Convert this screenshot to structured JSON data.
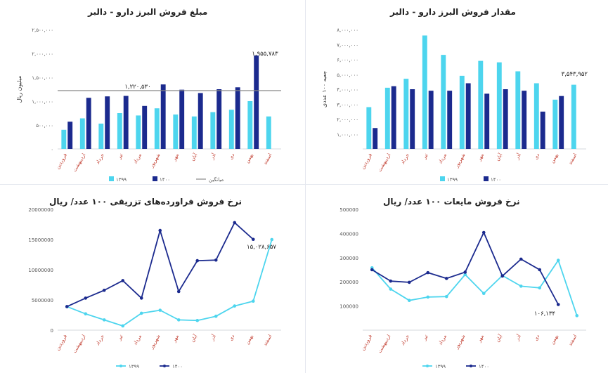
{
  "colors": {
    "light": "#4dd5ee",
    "dark": "#1b2a8e",
    "avg": "#888888"
  },
  "charts": [
    {
      "id": "tl",
      "title": "مبلغ فروش البرز دارو - دالبر",
      "ylabel": "میلیون ریال",
      "categories": [
        "فروردین",
        "اردیبهشت",
        "خرداد",
        "تیر",
        "مرداد",
        "شهریور",
        "مهر",
        "آبان",
        "آذر",
        "دی",
        "بهمن",
        "اسفند"
      ],
      "yticks": [
        "۰",
        "۵۰۰,۰۰۰",
        "۱,۰۰۰,۰۰۰",
        "۱,۵۰۰,۰۰۰",
        "۲,۰۰۰,۰۰۰",
        "۲,۵۰۰,۰۰۰"
      ],
      "legend": [
        "۱۳۹۹",
        "۱۴۰۰",
        "میانگین"
      ],
      "annotations": [
        "۱,۹۵۵,۷۸۳",
        "۱,۲۲۰,۵۳۰"
      ]
    },
    {
      "id": "tr",
      "title": "مقدار فروش البرز دارو - دالبر",
      "ylabel": "جعبه ۱۰۰ عددی",
      "categories": [
        "فروردین",
        "اردیبهشت",
        "خرداد",
        "تیر",
        "مرداد",
        "شهریور",
        "مهر",
        "آبان",
        "آذر",
        "دی",
        "بهمن",
        "اسفند"
      ],
      "yticks": [
        "۱,۰۰۰,۰۰۰",
        "۲,۰۰۰,۰۰۰",
        "۳,۰۰۰,۰۰۰",
        "۴,۰۰۰,۰۰۰",
        "۵,۰۰۰,۰۰۰",
        "۶,۰۰۰,۰۰۰",
        "۷,۰۰۰,۰۰۰",
        "۸,۰۰۰,۰۰۰"
      ],
      "legend": [
        "۱۳۹۹",
        "۱۴۰۰"
      ],
      "annotations": [
        "۳,۵۴۳,۹۵۲"
      ]
    },
    {
      "id": "bl",
      "title": "نرخ فروش فراورده‌های تزریقی ۱۰۰ عدد/ ریال",
      "categories": [
        "فروردین",
        "اردیبهشت",
        "خرداد",
        "تیر",
        "مرداد",
        "شهریور",
        "مهر",
        "آبان",
        "آذر",
        "دی",
        "بهمن",
        "اسفند"
      ],
      "yticks": [
        "0",
        "5000000",
        "10000000",
        "15000000",
        "20000000"
      ],
      "legend": [
        "۱۳۹۹",
        "۱۴۰۰"
      ],
      "annotations": [
        "۱۵,۰۲۸,۶۵۷"
      ]
    },
    {
      "id": "br",
      "title": "نرخ فروش مایعات ۱۰۰ عدد/ ریال",
      "categories": [
        "فروردین",
        "اردیبهشت",
        "خرداد",
        "تیر",
        "مرداد",
        "شهریور",
        "مهر",
        "آبان",
        "آذر",
        "دی",
        "بهمن",
        "اسفند"
      ],
      "yticks": [
        "100000",
        "200000",
        "300000",
        "400000",
        "500000"
      ],
      "legend": [
        "۱۳۹۹",
        "۱۴۰۰"
      ],
      "annotations": [
        "۱۰۶,۱۳۴"
      ]
    }
  ],
  "chart_data": [
    {
      "type": "bar",
      "title": "مبلغ فروش البرز دارو - دالبر",
      "ylabel": "میلیون ریال",
      "ylim": [
        0,
        2500000
      ],
      "categories": [
        "فروردین",
        "اردیبهشت",
        "خرداد",
        "تیر",
        "مرداد",
        "شهریور",
        "مهر",
        "آبان",
        "آذر",
        "دی",
        "بهمن",
        "اسفند"
      ],
      "series": [
        {
          "name": "۱۳۹۹",
          "values": [
            400000,
            640000,
            530000,
            750000,
            700000,
            850000,
            720000,
            680000,
            770000,
            820000,
            1000000,
            680000
          ]
        },
        {
          "name": "۱۴۰۰",
          "values": [
            570000,
            1070000,
            1100000,
            1110000,
            900000,
            1350000,
            1240000,
            1170000,
            1250000,
            1290000,
            1955783,
            null
          ]
        }
      ],
      "reference_line": {
        "name": "میانگین",
        "value": 1220530
      },
      "legend": "bottom"
    },
    {
      "type": "bar",
      "title": "مقدار فروش البرز دارو - دالبر",
      "ylabel": "جعبه ۱۰۰ عددی",
      "ylim": [
        0,
        8000000
      ],
      "categories": [
        "فروردین",
        "اردیبهشت",
        "خرداد",
        "تیر",
        "مرداد",
        "شهریور",
        "مهر",
        "آبان",
        "آذر",
        "دی",
        "بهمن",
        "اسفند"
      ],
      "series": [
        {
          "name": "۱۳۹۹",
          "values": [
            2800000,
            4100000,
            4700000,
            7600000,
            6300000,
            4900000,
            5900000,
            5800000,
            5200000,
            4400000,
            3300000,
            4300000
          ]
        },
        {
          "name": "۱۴۰۰",
          "values": [
            1400000,
            4200000,
            4000000,
            3900000,
            3900000,
            4400000,
            3700000,
            4000000,
            3900000,
            2500000,
            3543952,
            null
          ]
        }
      ],
      "legend": "bottom"
    },
    {
      "type": "line",
      "title": "نرخ فروش فراورده‌های تزریقی ۱۰۰ عدد/ ریال",
      "ylim": [
        0,
        20000000
      ],
      "categories": [
        "فروردین",
        "اردیبهشت",
        "خرداد",
        "تیر",
        "مرداد",
        "شهریور",
        "مهر",
        "آبان",
        "آذر",
        "دی",
        "بهمن",
        "اسفند"
      ],
      "series": [
        {
          "name": "۱۳۹۹",
          "values": [
            3900000,
            2700000,
            1700000,
            700000,
            2800000,
            3300000,
            1700000,
            1600000,
            2300000,
            4000000,
            4800000,
            15000000
          ]
        },
        {
          "name": "۱۴۰۰",
          "values": [
            3900000,
            5300000,
            6600000,
            8200000,
            5300000,
            16500000,
            6400000,
            11500000,
            11600000,
            17800000,
            15028657,
            null
          ]
        }
      ],
      "legend": "bottom"
    },
    {
      "type": "line",
      "title": "نرخ فروش مایعات ۱۰۰ عدد/ ریال",
      "ylim": [
        0,
        500000
      ],
      "categories": [
        "فروردین",
        "اردیبهشت",
        "خرداد",
        "تیر",
        "مرداد",
        "شهریور",
        "مهر",
        "آبان",
        "آذر",
        "دی",
        "بهمن",
        "اسفند"
      ],
      "series": [
        {
          "name": "۱۳۹۹",
          "values": [
            258000,
            170000,
            123000,
            137000,
            139000,
            230000,
            152000,
            226000,
            182000,
            175000,
            289000,
            60000
          ]
        },
        {
          "name": "۱۴۰۰",
          "values": [
            250000,
            203000,
            198000,
            238000,
            214000,
            240000,
            404000,
            224000,
            294000,
            250000,
            106134,
            null
          ]
        }
      ],
      "legend": "bottom"
    }
  ]
}
